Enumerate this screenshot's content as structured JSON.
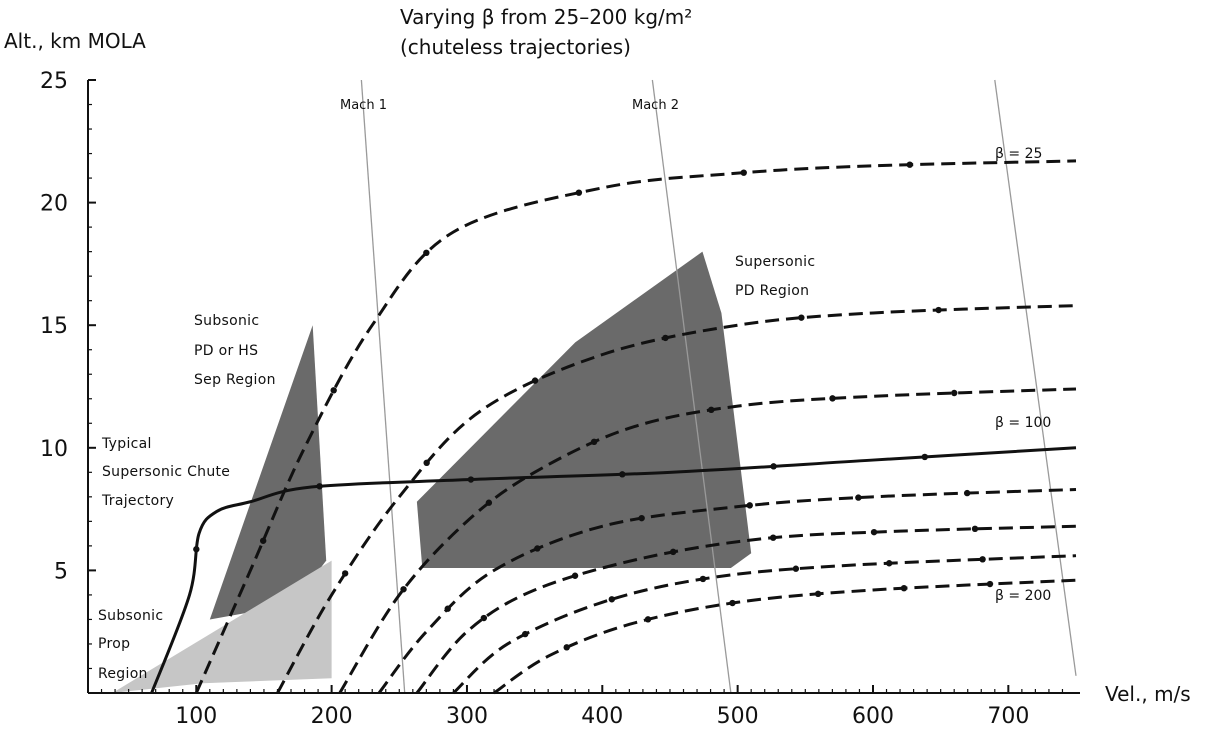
{
  "chart_data": {
    "type": "line",
    "title_line1": "Varying β from 25–200 kg/m²",
    "title_line2": "(chuteless trajectories)",
    "ylabel": "Alt., km MOLA",
    "xlabel": "Vel., m/s",
    "xlim": [
      20,
      750
    ],
    "ylim": [
      0,
      25
    ],
    "x_ticks": [
      {
        "v": 100,
        "label": "100"
      },
      {
        "v": 200,
        "label": "200"
      },
      {
        "v": 300,
        "label": "300"
      },
      {
        "v": 400,
        "label": "400"
      },
      {
        "v": 500,
        "label": "500"
      },
      {
        "v": 600,
        "label": "600"
      },
      {
        "v": 700,
        "label": "700"
      }
    ],
    "y_ticks": [
      {
        "v": 5,
        "label": "5"
      },
      {
        "v": 10,
        "label": "10"
      },
      {
        "v": 15,
        "label": "15"
      },
      {
        "v": 20,
        "label": "20"
      },
      {
        "v": 25,
        "label": "25"
      }
    ],
    "grid": false,
    "mach_lines": [
      {
        "label": "Mach 1",
        "points": [
          [
            222,
            25
          ],
          [
            254,
            0
          ]
        ]
      },
      {
        "label": "Mach 2",
        "points": [
          [
            437,
            25
          ],
          [
            495,
            0
          ]
        ]
      },
      {
        "label": "",
        "points": [
          [
            690,
            25
          ],
          [
            750,
            0.7
          ]
        ]
      }
    ],
    "regions": [
      {
        "label_lines": [
          "Subsonic",
          "PD or HS",
          "Sep Region"
        ],
        "color": "#6a6a6a",
        "points": [
          [
            110,
            3
          ],
          [
            186,
            15
          ],
          [
            196,
            5.4
          ],
          [
            171,
            3.6
          ]
        ]
      },
      {
        "label_lines": [
          "Subsonic",
          "Prop",
          "Region"
        ],
        "color": "#c6c6c6",
        "points": [
          [
            38,
            0
          ],
          [
            200,
            5.4
          ],
          [
            200,
            0.6
          ],
          [
            105,
            0.4
          ]
        ]
      },
      {
        "label_lines": [
          "Supersonic",
          "PD Region"
        ],
        "color": "#6a6a6a",
        "points": [
          [
            263,
            7.8
          ],
          [
            380,
            14.3
          ],
          [
            474,
            18.0
          ],
          [
            488,
            15.5
          ],
          [
            510,
            5.7
          ],
          [
            495,
            5.1
          ],
          [
            267,
            5.1
          ]
        ]
      }
    ],
    "series": [
      {
        "style": "dashed",
        "points": [
          [
            100,
            0
          ],
          [
            140,
            5
          ],
          [
            180,
            10
          ],
          [
            230,
            15
          ],
          [
            290,
            18.8
          ],
          [
            400,
            20.6
          ],
          [
            500,
            21.2
          ],
          [
            600,
            21.5
          ],
          [
            750,
            21.7
          ]
        ]
      },
      {
        "style": "dashed",
        "points": [
          [
            160,
            0
          ],
          [
            200,
            4
          ],
          [
            250,
            8
          ],
          [
            310,
            11.5
          ],
          [
            400,
            13.8
          ],
          [
            500,
            15
          ],
          [
            600,
            15.5
          ],
          [
            750,
            15.8
          ]
        ]
      },
      {
        "style": "dashed",
        "points": [
          [
            206,
            0
          ],
          [
            250,
            4
          ],
          [
            300,
            7
          ],
          [
            350,
            9
          ],
          [
            420,
            10.8
          ],
          [
            500,
            11.7
          ],
          [
            600,
            12.1
          ],
          [
            750,
            12.4
          ]
        ]
      },
      {
        "style": "dashed",
        "points": [
          [
            235,
            0
          ],
          [
            270,
            2.5
          ],
          [
            320,
            5
          ],
          [
            400,
            6.8
          ],
          [
            500,
            7.6
          ],
          [
            600,
            8
          ],
          [
            750,
            8.3
          ]
        ]
      },
      {
        "style": "dashed",
        "points": [
          [
            263,
            0
          ],
          [
            300,
            2.5
          ],
          [
            350,
            4.2
          ],
          [
            430,
            5.5
          ],
          [
            520,
            6.3
          ],
          [
            620,
            6.6
          ],
          [
            750,
            6.8
          ]
        ]
      },
      {
        "style": "dashed",
        "points": [
          [
            290,
            0
          ],
          [
            330,
            2
          ],
          [
            400,
            3.7
          ],
          [
            480,
            4.7
          ],
          [
            580,
            5.2
          ],
          [
            750,
            5.6
          ]
        ]
      },
      {
        "style": "dashed",
        "points": [
          [
            320,
            0
          ],
          [
            360,
            1.5
          ],
          [
            420,
            2.8
          ],
          [
            500,
            3.7
          ],
          [
            600,
            4.2
          ],
          [
            750,
            4.6
          ]
        ]
      },
      {
        "style": "solid",
        "points": [
          [
            67,
            0
          ],
          [
            95,
            4
          ],
          [
            102,
            6.5
          ],
          [
            115,
            7.4
          ],
          [
            140,
            7.8
          ],
          [
            185,
            8.4
          ],
          [
            300,
            8.7
          ],
          [
            450,
            9.0
          ],
          [
            600,
            9.5
          ],
          [
            750,
            10.0
          ]
        ]
      }
    ],
    "beta_labels": [
      {
        "text": "β = 25",
        "x": 685,
        "y": 21.8
      },
      {
        "text": "β = 100",
        "x": 685,
        "y": 10.8
      },
      {
        "text": "β = 200",
        "x": 685,
        "y": 3.8
      }
    ],
    "trajectory_label_lines": [
      "Typical",
      "Supersonic Chute",
      "Trajectory"
    ]
  }
}
